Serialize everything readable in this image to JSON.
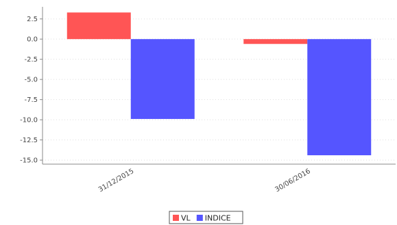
{
  "chart_data": {
    "type": "bar",
    "categories": [
      "31/12/2015",
      "30/06/2016"
    ],
    "series": [
      {
        "name": "VL",
        "values": [
          3.3,
          -0.6
        ],
        "color": "#ff5555"
      },
      {
        "name": "INDICE",
        "values": [
          -9.9,
          -14.4
        ],
        "color": "#5555ff"
      }
    ],
    "ylim": [
      -15.5,
      4.0
    ],
    "yticks": [
      2.5,
      0.0,
      -2.5,
      -5.0,
      -7.5,
      -10.0,
      -12.5,
      -15.0
    ],
    "ytick_labels": [
      "2.5",
      "0.0",
      "-2.5",
      "-5.0",
      "-7.5",
      "-10.0",
      "-12.5",
      "-15.0"
    ],
    "grid": true,
    "legend_position": "bottom-center"
  }
}
